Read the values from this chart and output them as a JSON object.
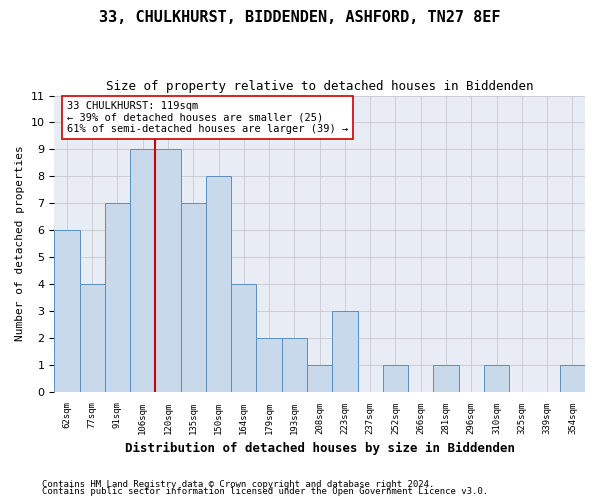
{
  "title": "33, CHULKHURST, BIDDENDEN, ASHFORD, TN27 8EF",
  "subtitle": "Size of property relative to detached houses in Biddenden",
  "xlabel": "Distribution of detached houses by size in Biddenden",
  "ylabel": "Number of detached properties",
  "bin_labels": [
    "62sqm",
    "77sqm",
    "91sqm",
    "106sqm",
    "120sqm",
    "135sqm",
    "150sqm",
    "164sqm",
    "179sqm",
    "193sqm",
    "208sqm",
    "223sqm",
    "237sqm",
    "252sqm",
    "266sqm",
    "281sqm",
    "296sqm",
    "310sqm",
    "325sqm",
    "339sqm",
    "354sqm"
  ],
  "bar_heights": [
    6,
    4,
    7,
    9,
    9,
    7,
    8,
    4,
    2,
    2,
    1,
    3,
    0,
    1,
    0,
    1,
    0,
    1,
    0,
    0,
    1
  ],
  "bar_color": "#c8d9ec",
  "bar_edgecolor": "#5a8fbe",
  "property_bin_index": 4,
  "property_line_color": "#cc0000",
  "annotation_text": "33 CHULKHURST: 119sqm\n← 39% of detached houses are smaller (25)\n61% of semi-detached houses are larger (39) →",
  "annotation_box_edgecolor": "#cc0000",
  "ylim": [
    0,
    11
  ],
  "yticks": [
    0,
    1,
    2,
    3,
    4,
    5,
    6,
    7,
    8,
    9,
    10,
    11
  ],
  "grid_color": "#c8c8d0",
  "background_color": "#e8edf5",
  "footer_line1": "Contains HM Land Registry data © Crown copyright and database right 2024.",
  "footer_line2": "Contains public sector information licensed under the Open Government Licence v3.0.",
  "title_fontsize": 11,
  "subtitle_fontsize": 9,
  "xlabel_fontsize": 9,
  "ylabel_fontsize": 8,
  "annotation_fontsize": 7.5,
  "footer_fontsize": 6.5
}
